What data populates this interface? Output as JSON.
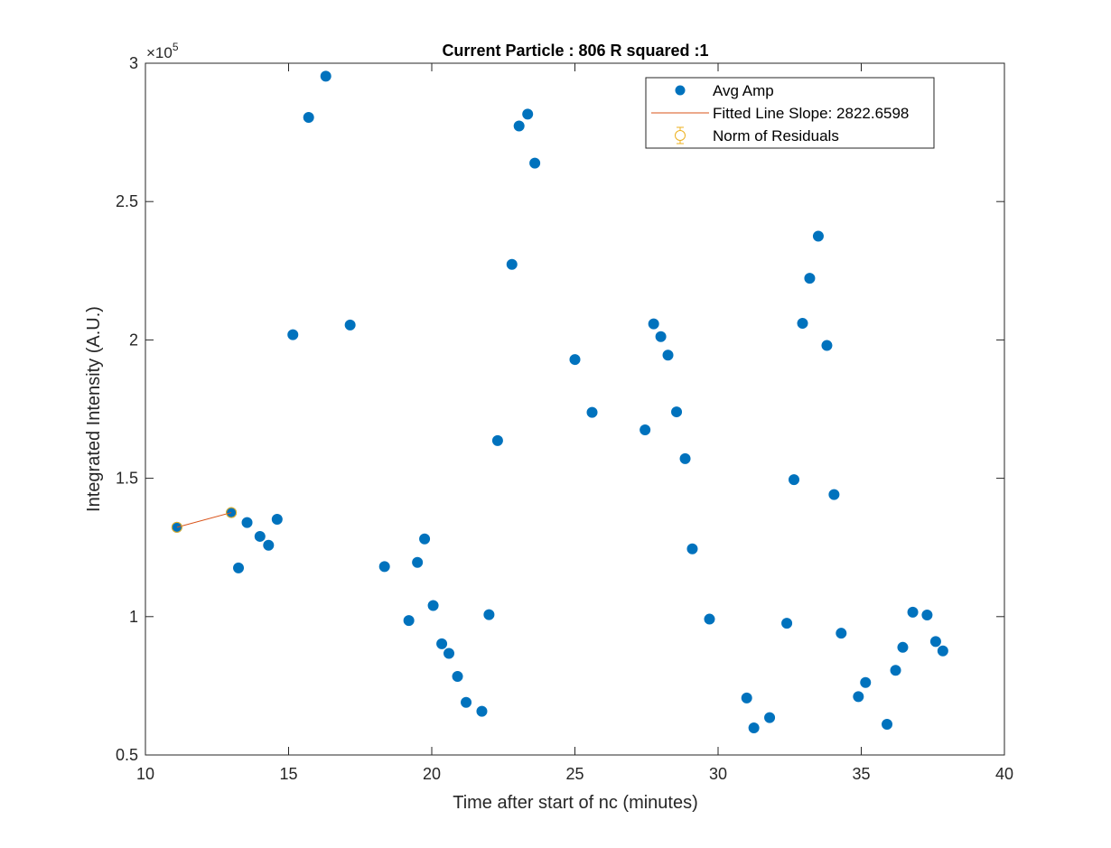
{
  "chart_data": {
    "type": "scatter",
    "title": "Current Particle : 806   R squared :1",
    "xlabel": "Time after start of nc (minutes)",
    "ylabel": "Integrated Intensity (A.U.)",
    "y_exponent_label": "×10",
    "y_exponent_power": "5",
    "xlim": [
      10,
      40
    ],
    "ylim": [
      0.5,
      3
    ],
    "xticks": [
      10,
      15,
      20,
      25,
      30,
      35,
      40
    ],
    "yticks": [
      0.5,
      1,
      1.5,
      2,
      2.5,
      3
    ],
    "xtick_labels": [
      "10",
      "15",
      "20",
      "25",
      "30",
      "35",
      "40"
    ],
    "ytick_labels": [
      "0.5",
      "1",
      "1.5",
      "2",
      "2.5",
      "3"
    ],
    "grid": false,
    "legend_position": "top-right",
    "legend": [
      {
        "label": "Avg Amp",
        "marker": "filled-circle",
        "color": "#0072BD"
      },
      {
        "label": "Fitted Line Slope: 2822.6598",
        "marker": "line",
        "color": "#D95319"
      },
      {
        "label": "Norm of Residuals",
        "marker": "errorbar-circle",
        "color": "#EDB120"
      }
    ],
    "series": [
      {
        "name": "Avg Amp",
        "color": "#0072BD",
        "x": [
          11.1,
          13.0,
          13.25,
          13.55,
          14.0,
          14.3,
          14.6,
          15.15,
          15.7,
          16.3,
          17.15,
          18.35,
          19.2,
          19.5,
          19.75,
          20.05,
          20.35,
          20.6,
          20.9,
          21.2,
          21.75,
          22.0,
          22.3,
          22.8,
          23.05,
          23.35,
          23.6,
          25.0,
          25.6,
          27.45,
          27.75,
          28.0,
          28.25,
          28.55,
          28.85,
          29.1,
          29.7,
          31.0,
          31.25,
          31.8,
          32.4,
          32.65,
          32.95,
          33.2,
          33.5,
          33.8,
          34.05,
          34.3,
          34.9,
          35.15,
          35.9,
          36.2,
          36.45,
          36.8,
          37.3,
          37.6,
          37.85
        ],
        "y": [
          1.323,
          1.376,
          1.176,
          1.34,
          1.29,
          1.258,
          1.352,
          2.019,
          2.804,
          2.953,
          2.054,
          1.181,
          0.986,
          1.196,
          1.281,
          1.04,
          0.902,
          0.867,
          0.784,
          0.69,
          0.658,
          1.007,
          1.636,
          2.273,
          2.773,
          2.816,
          2.639,
          1.929,
          1.738,
          1.675,
          2.058,
          2.012,
          1.945,
          1.74,
          1.571,
          1.245,
          0.991,
          0.706,
          0.598,
          0.635,
          0.976,
          1.495,
          2.06,
          2.223,
          2.375,
          1.98,
          1.441,
          0.94,
          0.711,
          0.762,
          0.611,
          0.806,
          0.889,
          1.016,
          1.006,
          0.91,
          0.876
        ]
      },
      {
        "name": "Fitted Line Slope: 2822.6598",
        "color": "#D95319",
        "x": [
          11.1,
          13.0
        ],
        "y": [
          1.323,
          1.376
        ]
      },
      {
        "name": "Norm of Residuals",
        "color": "#EDB120",
        "x": [
          11.1,
          13.0
        ],
        "y": [
          1.323,
          1.376
        ],
        "err": [
          0,
          0
        ]
      }
    ]
  }
}
